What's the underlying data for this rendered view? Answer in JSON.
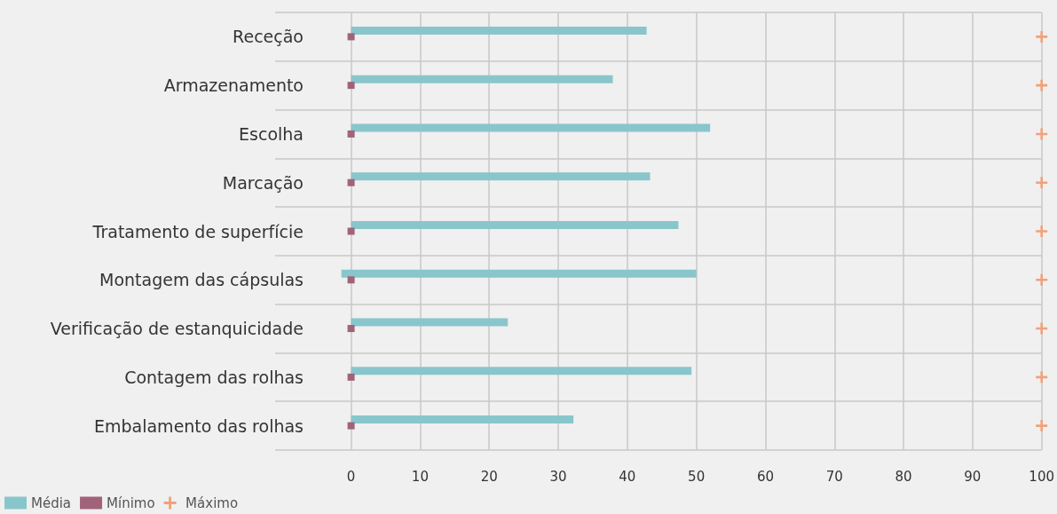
{
  "chart_data": {
    "type": "bar",
    "orientation": "horizontal",
    "categories": [
      "Receção",
      "Armazenamento",
      "Escolha",
      "Marcação",
      "Tratamento de superfície",
      "Montagem das cápsulas",
      "Verificação de estanquicidade",
      "Contagem das rolhas",
      "Embalamento das rolhas"
    ],
    "series": [
      {
        "name": "Média",
        "type": "bar",
        "color": "#88c6cc",
        "values": [
          42.8,
          37.9,
          52.0,
          43.3,
          47.4,
          51.4,
          22.7,
          49.3,
          32.2
        ],
        "base": [
          0,
          0,
          0,
          0,
          0,
          -1.4,
          0,
          0,
          0
        ]
      },
      {
        "name": "Mínimo",
        "type": "scatter",
        "marker": "square",
        "color": "#a0637a",
        "values": [
          0,
          0,
          0,
          0,
          0,
          0,
          0,
          0,
          0
        ]
      },
      {
        "name": "Máximo",
        "type": "scatter",
        "marker": "cross",
        "color": "#f0a27a",
        "values": [
          100,
          100,
          100,
          100,
          100,
          100,
          100,
          100,
          100
        ]
      }
    ],
    "xlim": [
      -11,
      100
    ],
    "xticks": [
      0,
      10,
      20,
      30,
      40,
      50,
      60,
      70,
      80,
      90,
      100
    ],
    "grid": true,
    "legend": "bottom left"
  }
}
